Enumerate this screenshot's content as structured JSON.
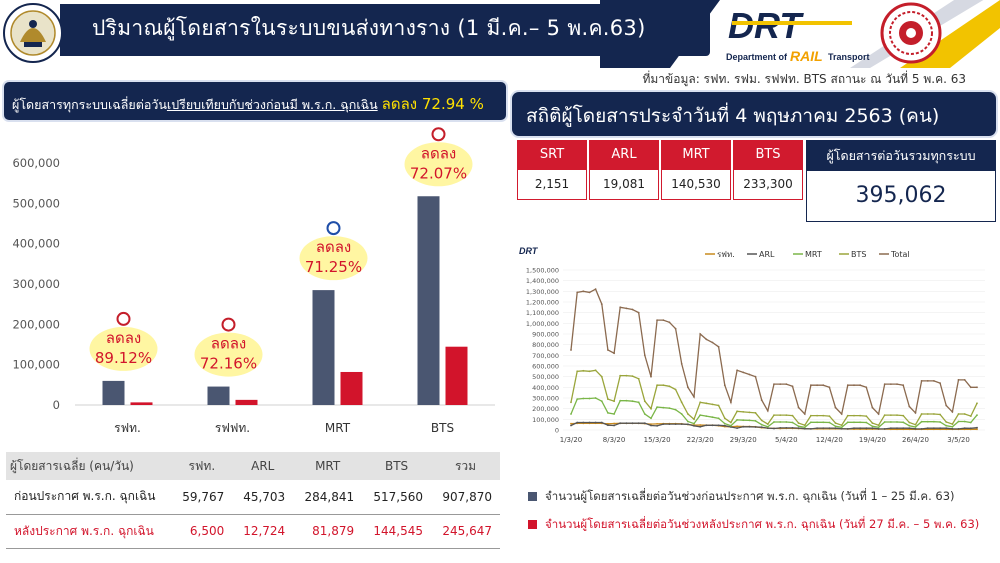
{
  "header": {
    "title": "ปริมาณผู้โดยสารในระบบขนส่งทางราง  (1 มี.ค.– 5 พ.ค.63)",
    "logo_text": "DRT",
    "logo_sub_1": "Department of",
    "logo_sub_2": "RAIL",
    "logo_sub_3": "Transport",
    "source": "ที่มาข้อมูล: รฟท. รฟม. รฟฟท. BTS สถานะ ณ วันที่ 5 พ.ค. 63",
    "colors": {
      "navy": "#14264f",
      "accent_yellow": "#f2c300",
      "red": "#d11a2e"
    }
  },
  "left_banner": {
    "text_prefix": "ผู้โดยสารทุกระบบเฉลี่ยต่อวัน",
    "text_underlined": "เปรียบเทียบกับช่วงก่อนมี พ.ร.ก. ฉุกเฉิน",
    "highlight": "ลดลง 72.94 %"
  },
  "chart_data": [
    {
      "type": "bar",
      "categories": [
        "รฟท.",
        "รฟฟท.",
        "MRT",
        "BTS"
      ],
      "ylim": [
        0,
        600000
      ],
      "yticks": [
        "0",
        "100,000",
        "200,000",
        "300,000",
        "400,000",
        "500,000",
        "600,000"
      ],
      "series": [
        {
          "name": "ก่อนประกาศ พ.ร.ก. ฉุกเฉิน",
          "color": "#4a5671",
          "values": [
            59767,
            45703,
            284841,
            517560
          ]
        },
        {
          "name": "หลังประกาศ พ.ร.ก. ฉุกเฉิน",
          "color": "#d2142b",
          "values": [
            6500,
            12724,
            81879,
            144545
          ]
        }
      ],
      "annotations": [
        {
          "label": "ลดลง",
          "pct": "89.12%"
        },
        {
          "label": "ลดลง",
          "pct": "72.16%"
        },
        {
          "label": "ลดลง",
          "pct": "71.25%"
        },
        {
          "label": "ลดลง",
          "pct": "72.07%"
        }
      ]
    },
    {
      "type": "line",
      "xticks": [
        "1/3/20",
        "8/3/20",
        "15/3/20",
        "22/3/20",
        "29/3/20",
        "5/4/20",
        "12/4/20",
        "19/4/20",
        "26/4/20",
        "3/5/20"
      ],
      "ylim": [
        0,
        1500000
      ],
      "yticks": [
        "0",
        "100,000",
        "200,000",
        "300,000",
        "400,000",
        "500,000",
        "600,000",
        "700,000",
        "800,000",
        "900,000",
        "1,000,000",
        "1,100,000",
        "1,200,000",
        "1,300,000",
        "1,400,000",
        "1,500,000"
      ],
      "legend": [
        "รฟท.",
        "ARL",
        "MRT",
        "BTS",
        "Total"
      ],
      "colors": [
        "#c98a1e",
        "#555555",
        "#7ab648",
        "#9aa53b",
        "#8b6a4f"
      ],
      "series": [
        {
          "name": "รฟท.",
          "values": [
            60,
            62,
            62,
            63,
            64,
            62,
            58,
            61,
            63,
            62,
            62,
            63,
            60,
            55,
            57,
            60,
            59,
            60,
            58,
            52,
            45,
            47,
            46,
            45,
            40,
            32,
            30,
            35,
            33,
            33,
            30,
            22,
            18,
            15,
            14,
            15,
            15,
            14,
            12,
            10,
            10,
            11,
            11,
            11,
            11,
            9,
            8,
            8,
            8,
            8,
            8,
            8,
            7,
            7,
            7,
            7,
            7,
            7,
            7,
            7,
            7,
            7,
            7,
            7,
            7,
            6,
            7
          ]
        },
        {
          "name": "ARL",
          "values": [
            42,
            70,
            70,
            70,
            70,
            70,
            45,
            42,
            64,
            64,
            64,
            64,
            64,
            42,
            38,
            55,
            55,
            55,
            55,
            53,
            38,
            30,
            44,
            44,
            44,
            40,
            28,
            18,
            30,
            30,
            28,
            26,
            18,
            14,
            20,
            20,
            20,
            18,
            12,
            10,
            18,
            18,
            18,
            17,
            12,
            10,
            17,
            17,
            17,
            17,
            11,
            10,
            17,
            17,
            17,
            17,
            11,
            10,
            17,
            17,
            17,
            17,
            11,
            10,
            17,
            16,
            22
          ]
        },
        {
          "name": "MRT",
          "values": [
            150,
            290,
            295,
            295,
            300,
            270,
            160,
            150,
            275,
            275,
            270,
            260,
            150,
            110,
            215,
            210,
            205,
            190,
            150,
            80,
            60,
            140,
            130,
            120,
            110,
            60,
            40,
            95,
            92,
            90,
            85,
            50,
            30,
            75,
            75,
            75,
            70,
            35,
            25,
            72,
            72,
            72,
            70,
            35,
            25,
            72,
            72,
            72,
            70,
            35,
            25,
            75,
            75,
            75,
            72,
            40,
            28,
            78,
            78,
            78,
            75,
            40,
            30,
            80,
            80,
            70,
            140
          ]
        },
        {
          "name": "BTS",
          "values": [
            260,
            550,
            555,
            550,
            560,
            500,
            290,
            270,
            510,
            510,
            505,
            480,
            270,
            200,
            420,
            420,
            410,
            380,
            260,
            150,
            100,
            260,
            250,
            240,
            230,
            110,
            70,
            175,
            170,
            165,
            160,
            90,
            55,
            140,
            140,
            140,
            135,
            65,
            45,
            135,
            135,
            135,
            130,
            65,
            45,
            135,
            135,
            135,
            130,
            65,
            45,
            140,
            140,
            140,
            135,
            70,
            50,
            150,
            150,
            150,
            145,
            75,
            55,
            150,
            150,
            130,
            250
          ]
        },
        {
          "name": "Total",
          "values": [
            750,
            1290,
            1300,
            1290,
            1320,
            1180,
            750,
            720,
            1150,
            1140,
            1130,
            1100,
            700,
            500,
            1030,
            1030,
            1010,
            950,
            620,
            400,
            310,
            900,
            850,
            820,
            780,
            420,
            260,
            560,
            540,
            520,
            500,
            280,
            180,
            430,
            430,
            430,
            410,
            210,
            150,
            420,
            420,
            420,
            400,
            210,
            150,
            420,
            420,
            420,
            400,
            210,
            150,
            430,
            430,
            430,
            420,
            220,
            160,
            460,
            460,
            460,
            440,
            230,
            170,
            470,
            470,
            400,
            400
          ]
        }
      ],
      "values_in_thousands": true
    }
  ],
  "table": {
    "headers": [
      "ผู้โดยสารเฉลี่ย (คน/วัน)",
      "รฟท.",
      "ARL",
      "MRT",
      "BTS",
      "รวม"
    ],
    "rows": [
      {
        "label": "ก่อนประกาศ พ.ร.ก. ฉุกเฉิน",
        "cells": [
          "59,767",
          "45,703",
          "284,841",
          "517,560",
          "907,870"
        ]
      },
      {
        "label": "หลังประกาศ พ.ร.ก. ฉุกเฉิน",
        "cells": [
          "6,500",
          "12,724",
          "81,879",
          "144,545",
          "245,647"
        ]
      }
    ]
  },
  "right_banner": {
    "title": "สถิติผู้โดยสารประจำวันที่ 4 พฤษภาคม 2563 (คน)"
  },
  "daily_stats": [
    {
      "name": "SRT",
      "value": "2,151"
    },
    {
      "name": "ARL",
      "value": "19,081"
    },
    {
      "name": "MRT",
      "value": "140,530"
    },
    {
      "name": "BTS",
      "value": "233,300"
    }
  ],
  "total_box": {
    "label": "ผู้โดยสารต่อวันรวมทุกระบบ",
    "value": "395,062"
  },
  "legend_bottom": {
    "before": "จำนวนผู้โดยสารเฉลี่ยต่อวันช่วงก่อนประกาศ  พ.ร.ก. ฉุกเฉิน (วันที่ 1 – 25 มี.ค. 63)",
    "after": "จำนวนผู้โดยสารเฉลี่ยต่อวันช่วงหลังประกาศ  พ.ร.ก. ฉุกเฉิน (วันที่ 27 มี.ค. – 5 พ.ค. 63)"
  }
}
